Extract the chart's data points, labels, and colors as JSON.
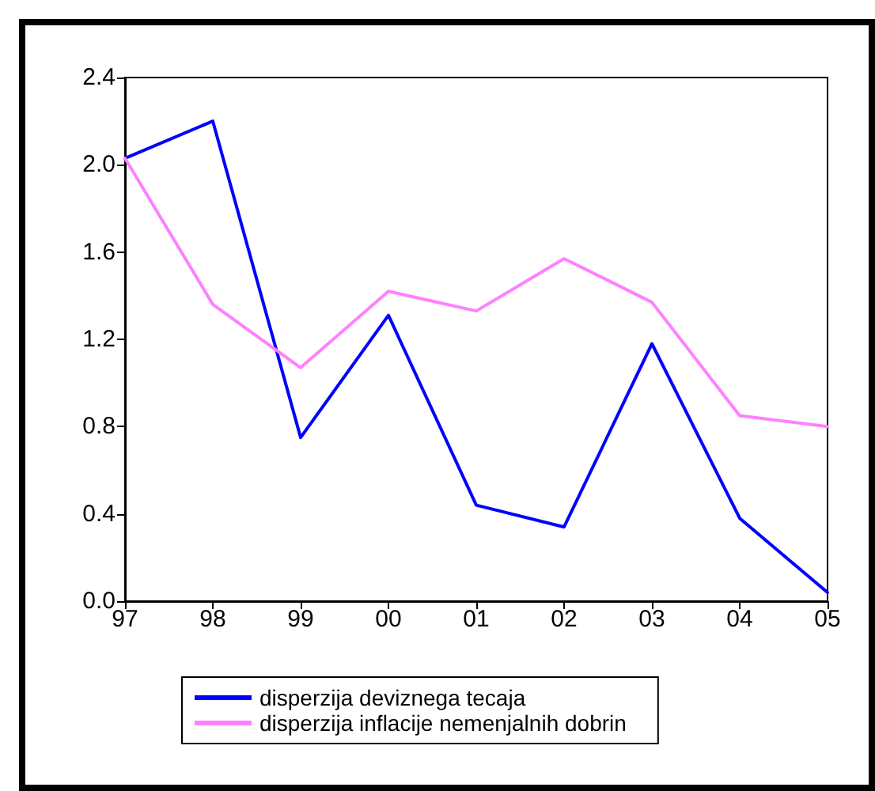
{
  "chart_data": {
    "type": "line",
    "categories": [
      "97",
      "98",
      "99",
      "00",
      "01",
      "02",
      "03",
      "04",
      "05"
    ],
    "series": [
      {
        "name": "disperzija deviznega tecaja",
        "color": "#0000ff",
        "values": [
          2.03,
          2.2,
          0.75,
          1.31,
          0.44,
          0.34,
          1.18,
          0.38,
          0.04
        ]
      },
      {
        "name": "disperzija inflacije nemenjalnih dobrin",
        "color": "#ff80ff",
        "values": [
          2.03,
          1.36,
          1.07,
          1.42,
          1.33,
          1.57,
          1.37,
          0.85,
          0.8
        ]
      }
    ],
    "ylim": [
      0,
      2.4
    ],
    "yticks": [
      {
        "value": 0,
        "label": "0.0"
      },
      {
        "value": 0.4,
        "label": "0.4"
      },
      {
        "value": 0.8,
        "label": "0.8"
      },
      {
        "value": 1.2,
        "label": "1.2"
      },
      {
        "value": 1.6,
        "label": "1.6"
      },
      {
        "value": 2,
        "label": "2.0"
      },
      {
        "value": 2.4,
        "label": "2.4"
      }
    ],
    "grid": false,
    "legend": "bottom",
    "marker": "none",
    "line_style": "solid"
  }
}
